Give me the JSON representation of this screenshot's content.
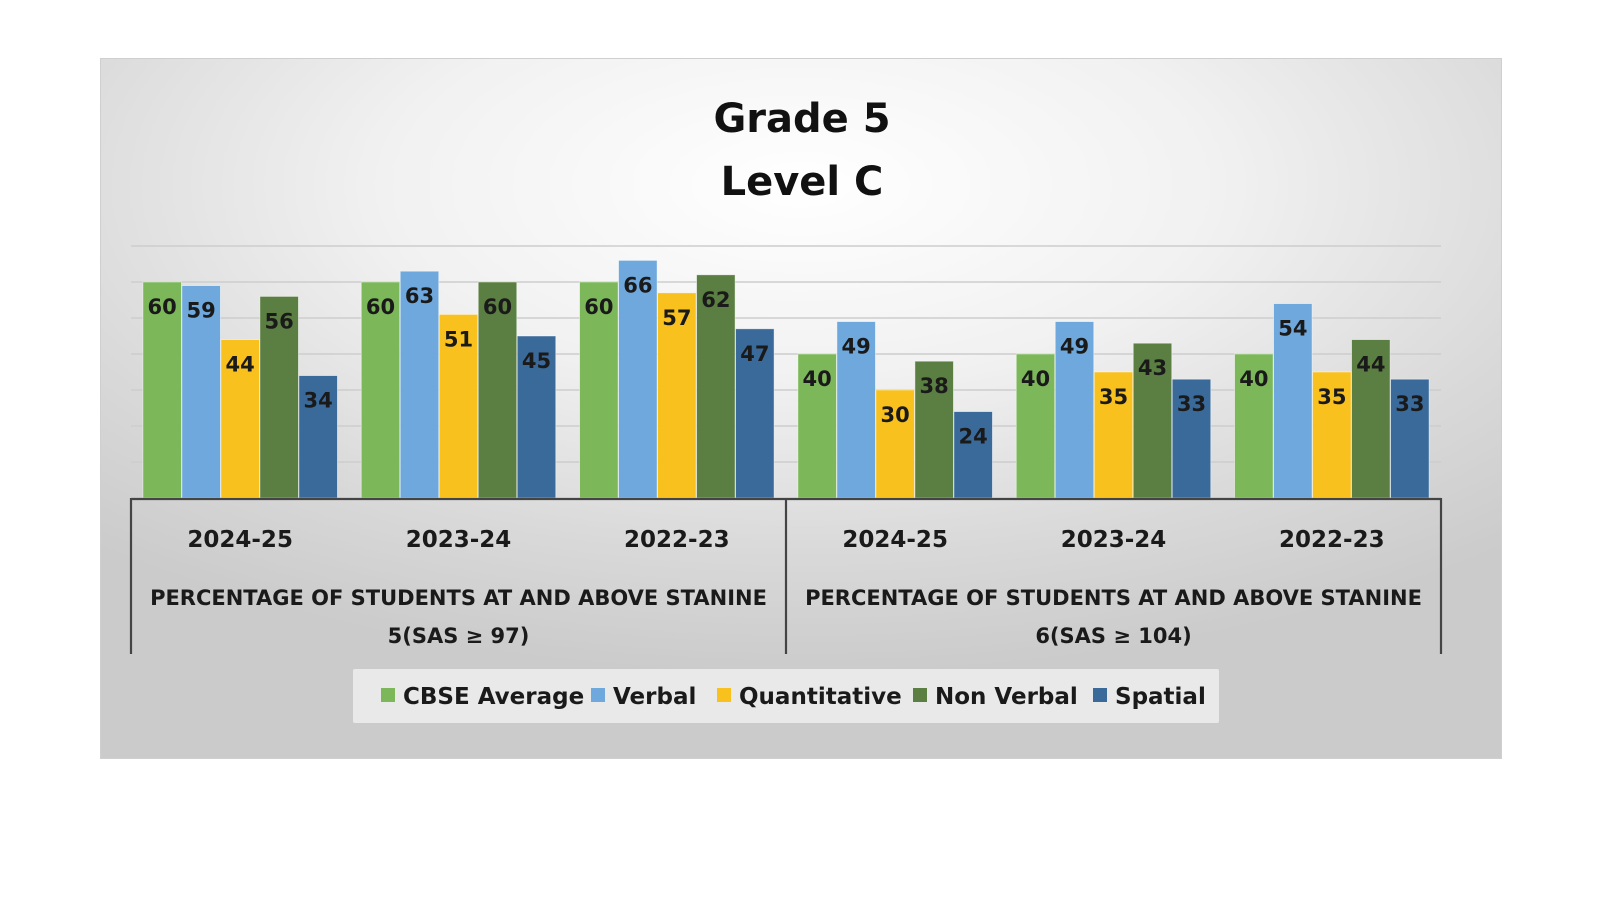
{
  "chart_data": {
    "type": "bar",
    "title": [
      "Grade 5",
      "Level C"
    ],
    "xlabel": "",
    "ylabel": "",
    "ylim": [
      0,
      70
    ],
    "grid": true,
    "legend_placement": "bottom",
    "groups": [
      {
        "label": [
          "PERCENTAGE OF STUDENTS AT AND ABOVE STANINE",
          "5(SAS ≥ 97)"
        ],
        "categories": [
          "2024-25",
          "2023-24",
          "2022-23"
        ]
      },
      {
        "label": [
          "PERCENTAGE OF STUDENTS AT AND ABOVE STANINE",
          "6(SAS ≥ 104)"
        ],
        "categories": [
          "2024-25",
          "2023-24",
          "2022-23"
        ]
      }
    ],
    "series": [
      {
        "name": "CBSE Average",
        "color": "#7cb85a",
        "values": [
          60,
          60,
          60,
          40,
          40,
          40
        ]
      },
      {
        "name": "Verbal",
        "color": "#6fa8dc",
        "values": [
          59,
          63,
          66,
          49,
          49,
          54
        ]
      },
      {
        "name": "Quantitative",
        "color": "#f9c11e",
        "values": [
          44,
          51,
          57,
          30,
          35,
          35
        ]
      },
      {
        "name": "Non Verbal",
        "color": "#5b7f42",
        "values": [
          56,
          60,
          62,
          38,
          43,
          44
        ]
      },
      {
        "name": "Spatial",
        "color": "#3a6a9a",
        "values": [
          34,
          45,
          47,
          24,
          33,
          33
        ]
      }
    ]
  }
}
